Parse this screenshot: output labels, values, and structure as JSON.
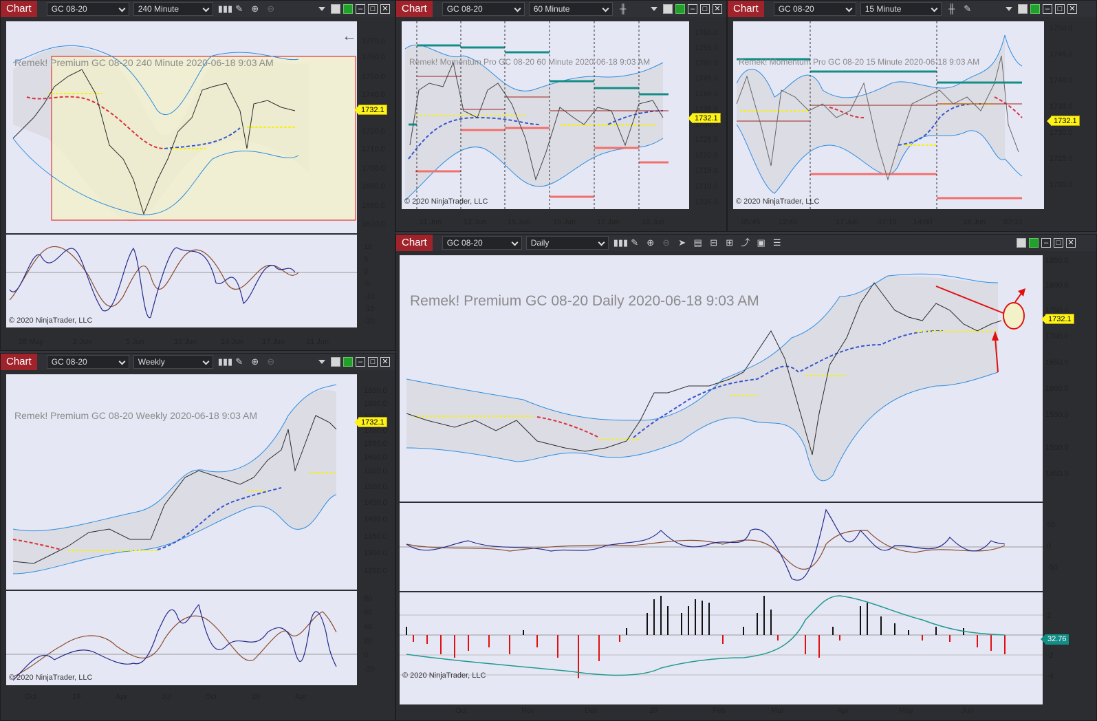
{
  "app": {
    "chart_btn": "Chart",
    "last_price": "1732.1",
    "osc_value": "32.76",
    "copyright": "© 2020 NinjaTrader, LLC"
  },
  "w1": {
    "instrument": "GC 08-20",
    "period": "240 Minute",
    "title": "Remek!  Premium  GC 08-20  240 Minute  2020-06-18 9:03 AM",
    "prices": [
      "1770.0",
      "1760.0",
      "1750.0",
      "1740.0",
      "1730.0",
      "1720.0",
      "1710.0",
      "1700.0",
      "1690.0",
      "1680.0",
      "1670.0"
    ],
    "osc": [
      "10",
      "5",
      "0",
      "-5",
      "-10",
      "-15",
      "-20"
    ],
    "dates": [
      "28 May",
      "2 Jun",
      "5 Jun",
      "10 Jun",
      "14 Jun",
      "17 Jun",
      "21 Jun"
    ]
  },
  "w2": {
    "instrument": "GC 08-20",
    "period": "60 Minute",
    "title": "Remek!  Momentum Pro  GC 08-20  60 Minute  2020-06-18 9:03 AM",
    "prices": [
      "1760.0",
      "1755.0",
      "1750.0",
      "1745.0",
      "1740.0",
      "1735.0",
      "1730.0",
      "1725.0",
      "1720.0",
      "1715.0",
      "1710.0",
      "1705.0"
    ],
    "dates": [
      "11 Jun",
      "12 Jun",
      "15 Jun",
      "16 Jun",
      "17 Jun",
      "18 Jun"
    ]
  },
  "w3": {
    "instrument": "GC 08-20",
    "period": "15 Minute",
    "title": "Remek!  Momentum Pro  GC 08-20  15 Minute  2020-06-18 9:03 AM",
    "prices": [
      "1750.0",
      "1745.0",
      "1740.0",
      "1735.0",
      "1730.0",
      "1725.0",
      "1720.0"
    ],
    "dates": [
      "05:45",
      "12:45",
      "17 Jun",
      "07:15",
      "14:00",
      "18 Jun",
      "07:15"
    ]
  },
  "w4": {
    "instrument": "GC 08-20",
    "period": "Weekly",
    "title": "Remek!  Premium  GC 08-20  Weekly  2020-06-18 9:03 AM",
    "prices": [
      "1850.0",
      "1800.0",
      "1750.0",
      "1700.0",
      "1650.0",
      "1600.0",
      "1550.0",
      "1500.0",
      "1450.0",
      "1400.0",
      "1350.0",
      "1300.0",
      "1250.0"
    ],
    "osc": [
      "80",
      "60",
      "40",
      "20",
      "0",
      "-20"
    ],
    "dates": [
      "Oct",
      "19",
      "Apr",
      "Jul",
      "Oct",
      "20",
      "Apr"
    ]
  },
  "w5": {
    "instrument": "GC 08-20",
    "period": "Daily",
    "title": "Remek!  Premium  GC 08-20  Daily  2020-06-18 9:03 AM",
    "prices": [
      "1850.0",
      "1800.0",
      "1750.0",
      "1700.0",
      "1650.0",
      "1600.0",
      "1550.0",
      "1500.0",
      "1450.0"
    ],
    "osc": [
      "50",
      "0",
      "-50"
    ],
    "hist": [
      "2",
      "0",
      "-2",
      "-4"
    ],
    "dates": [
      "Oct",
      "Nov",
      "Dec",
      "20",
      "Feb",
      "Mar",
      "Apr",
      "May",
      "Jun"
    ]
  }
}
